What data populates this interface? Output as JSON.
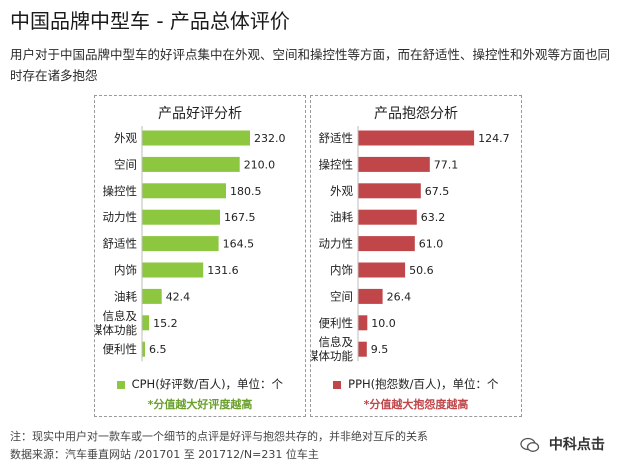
{
  "title": "中国品牌中型车 - 产品总体评价",
  "subtitle": "用户对于中国品牌中型车的好评点集中在外观、空间和操控性等方面，而在舒适性、操控性和外观等方面也同时存在诸多抱怨",
  "chart_data": [
    {
      "type": "bar",
      "orientation": "horizontal",
      "title": "产品好评分析",
      "categories": [
        "外观",
        "空间",
        "操控性",
        "动力性",
        "舒适性",
        "内饰",
        "油耗",
        "信息及\n多媒体功能",
        "便利性"
      ],
      "values": [
        232.0,
        210.0,
        180.5,
        167.5,
        164.5,
        131.6,
        42.4,
        15.2,
        6.5
      ],
      "value_labels": [
        "232.0",
        "210.0",
        "180.5",
        "167.5",
        "164.5",
        "131.6",
        "42.4",
        "15.2",
        "6.5"
      ],
      "legend": "CPH(好评数/百人)，单位：个",
      "legend_note": "*分值越大好评度越高",
      "color": "#8dc63f",
      "note_color": "#6aa02c",
      "xlim": [
        0,
        260
      ]
    },
    {
      "type": "bar",
      "orientation": "horizontal",
      "title": "产品抱怨分析",
      "categories": [
        "舒适性",
        "操控性",
        "外观",
        "油耗",
        "动力性",
        "内饰",
        "空间",
        "便利性",
        "信息及\n多媒体功能"
      ],
      "values": [
        124.7,
        77.1,
        67.5,
        63.2,
        61.0,
        50.6,
        26.4,
        10.0,
        9.5
      ],
      "value_labels": [
        "124.7",
        "77.1",
        "67.5",
        "63.2",
        "61.0",
        "50.6",
        "26.4",
        "10.0",
        "9.5"
      ],
      "legend": "PPH(抱怨数/百人)，单位：个",
      "legend_note": "*分值越大抱怨度越高",
      "color": "#c0464a",
      "note_color": "#c0464a",
      "xlim": [
        0,
        130
      ]
    }
  ],
  "note": "注：现实中用户对一款车或一个细节的点评是好评与抱怨共存的，并非绝对互斥的关系",
  "source": "数据来源：汽车垂直网站 /201701 至 201712/N=231 位车主",
  "brand": "中科点击"
}
